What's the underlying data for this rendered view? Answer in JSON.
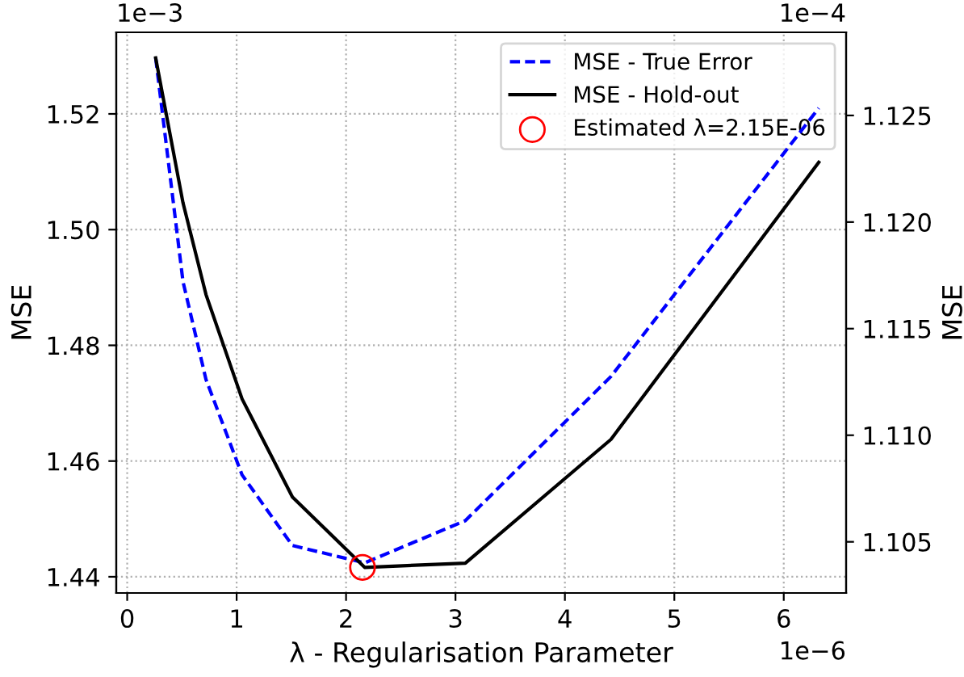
{
  "chart_data": {
    "type": "line",
    "xlabel": "λ - Regularisation Parameter",
    "ylabel": "MSE",
    "y2label": "MSE",
    "x": [
      0.26,
      0.51,
      0.72,
      1.05,
      1.51,
      2.17,
      3.09,
      4.42,
      6.32
    ],
    "series": [
      {
        "name": "MSE - True Error",
        "color": "#0000ff",
        "line_style": "dashed",
        "values": [
          1.5297,
          1.491,
          1.4741,
          1.4576,
          1.4454,
          1.4424,
          1.4497,
          1.4746,
          1.521
        ]
      },
      {
        "name": "MSE - Hold-out",
        "color": "#000000",
        "line_style": "solid",
        "axis": "y2",
        "values": [
          1.1277,
          1.1209,
          1.1166,
          1.1117,
          1.1071,
          1.1038,
          1.104,
          1.1098,
          1.1228
        ]
      },
      {
        "name": "Estimated λ=2.15E-06",
        "type": "scatter",
        "marker": "circle",
        "color": "#ff0000",
        "axis": "y2",
        "x": [
          2.15
        ],
        "values": [
          1.1038
        ]
      }
    ],
    "xlim": [
      -0.1,
      6.57
    ],
    "xticks": [
      0,
      1,
      2,
      3,
      4,
      5,
      6
    ],
    "ylim": [
      1.4372,
      1.5341
    ],
    "yticks": [
      1.44,
      {
        "value": 1.46,
        "label": "1.46"
      },
      {
        "value": 1.48,
        "label": "1.48"
      },
      {
        "value": 1.5,
        "label": "1.50"
      },
      {
        "value": 1.52,
        "label": "1.52"
      }
    ],
    "y2lim": [
      1.1026,
      1.1289
    ],
    "y2ticks": [
      1.105,
      {
        "value": 1.11,
        "label": "1.110"
      },
      1.115,
      {
        "value": 1.12,
        "label": "1.120"
      },
      1.125
    ],
    "annotations": [
      "1e−3",
      "1e−4",
      "1e−6"
    ],
    "grid": true,
    "legend": "top right"
  }
}
